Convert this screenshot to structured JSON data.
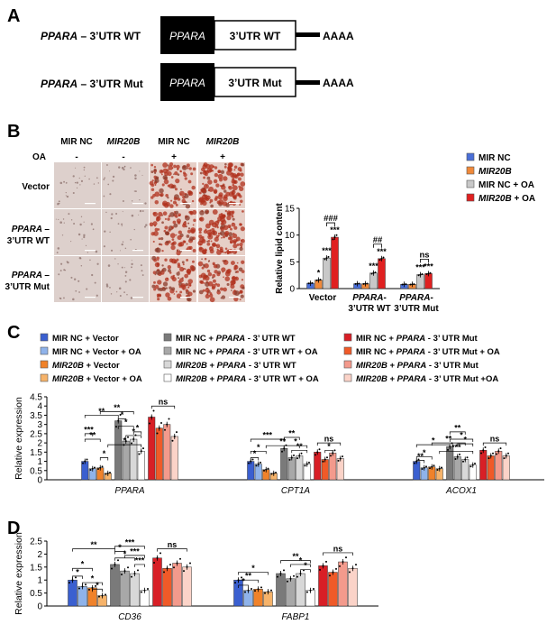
{
  "panels": {
    "A": {
      "letter": "A",
      "constructs": [
        {
          "gene": "PPARA",
          "suffix": " – 3’UTR WT",
          "box_gene": "PPARA",
          "box_utr": "3’UTR WT",
          "tail": "AAAA"
        },
        {
          "gene": "PPARA",
          "suffix": " – 3’UTR Mut",
          "box_gene": "PPARA",
          "box_utr": "3’UTR Mut",
          "tail": "AAAA"
        }
      ]
    },
    "B": {
      "letter": "B",
      "column_headers": [
        "MIR NC",
        "MIR20B",
        "MIR NC",
        "MIR20B"
      ],
      "oa_label": "OA",
      "oa_signs": [
        "-",
        "-",
        "+",
        "+"
      ],
      "row_labels": [
        [
          "Vector"
        ],
        [
          "PPARA –",
          "3’UTR WT"
        ],
        [
          "PPARA –",
          "3’UTR Mut"
        ]
      ]
    },
    "C": {
      "letter": "C"
    },
    "D": {
      "letter": "D"
    }
  },
  "legends": {
    "B": [
      {
        "label": "MIR NC",
        "color": "#4a6fd8"
      },
      {
        "label": "MIR20B",
        "color": "#f0893a"
      },
      {
        "label": "MIR NC + OA",
        "color": "#c8c8c8"
      },
      {
        "label": "MIR20B + OA",
        "color": "#e02020"
      }
    ],
    "C": [
      {
        "label": "MIR NC + Vector",
        "color": "#3a5fd0"
      },
      {
        "label": "MIR NC + Vector + OA",
        "color": "#8fb3ea"
      },
      {
        "label": "MIR20B + Vector",
        "color": "#f0822a"
      },
      {
        "label": "MIR20B + Vector + OA",
        "color": "#f6b36a"
      },
      {
        "label": "MIR NC + PPARA - 3’ UTR WT",
        "color": "#7a7a7a"
      },
      {
        "label": "MIR NC + PPARA - 3’ UTR WT + OA",
        "color": "#a8a8a8"
      },
      {
        "label": "MIR20B + PPARA - 3’ UTR WT",
        "color": "#d8d8d8"
      },
      {
        "label": "MIR20B + PPARA - 3’ UTR WT + OA",
        "color": "#ffffff"
      },
      {
        "label": "MIR NC + PPARA - 3’ UTR Mut",
        "color": "#d81f26"
      },
      {
        "label": "MIR NC + PPARA - 3’ UTR Mut + OA",
        "color": "#f05a28"
      },
      {
        "label": "MIR20B + PPARA - 3’ UTR Mut",
        "color": "#f39a8c"
      },
      {
        "label": "MIR20B + PPARA - 3’ UTR Mut +OA",
        "color": "#fbd3c8"
      }
    ]
  },
  "chart_data": [
    {
      "id": "B-bar",
      "type": "bar",
      "ylabel": "Relative lipid content",
      "ylim": [
        0,
        15
      ],
      "yticks": [
        0,
        5,
        10,
        15
      ],
      "categories": [
        [
          "Vector"
        ],
        [
          "PPARA-",
          "3’UTR WT"
        ],
        [
          "PPARA-",
          "3’UTR Mut"
        ]
      ],
      "series": [
        {
          "name": "MIR NC",
          "values": [
            1.0,
            0.9,
            0.8
          ]
        },
        {
          "name": "MIR20B",
          "values": [
            1.6,
            0.9,
            0.8
          ]
        },
        {
          "name": "MIR NC + OA",
          "values": [
            5.7,
            2.9,
            2.6
          ]
        },
        {
          "name": "MIR20B + OA",
          "values": [
            9.6,
            5.6,
            2.8
          ]
        }
      ],
      "star_labels": [
        "",
        "*",
        "***",
        "***",
        "",
        "",
        "***",
        "***",
        "",
        "",
        "***",
        "***"
      ],
      "bracket_labels": [
        "###",
        "##",
        "ns"
      ]
    },
    {
      "id": "C-expr",
      "type": "bar",
      "ylabel": "Relative expression",
      "ylim": [
        0,
        4.5
      ],
      "yticks": [
        0,
        0.5,
        1,
        1.5,
        2,
        2.5,
        3,
        3.5,
        4,
        4.5
      ],
      "categories": [
        "PPARA",
        "CPT1A",
        "ACOX1"
      ],
      "values": [
        [
          1.0,
          0.6,
          0.65,
          0.35,
          3.2,
          2.1,
          2.2,
          1.55,
          3.4,
          2.8,
          3.0,
          2.35
        ],
        [
          1.0,
          0.85,
          0.55,
          0.35,
          1.7,
          1.2,
          1.3,
          0.85,
          1.5,
          1.1,
          1.45,
          1.15
        ],
        [
          1.0,
          0.65,
          0.7,
          0.6,
          1.8,
          1.25,
          1.1,
          0.8,
          1.6,
          1.3,
          1.55,
          1.3
        ]
      ],
      "annotations": {
        "PPARA": [
          "**",
          "**",
          "***",
          "*",
          "**",
          "*",
          "*",
          "*",
          "*",
          "*",
          "ns"
        ],
        "CPT1A": [
          "***",
          "*",
          "*",
          "**",
          "**",
          "*",
          "**",
          "*",
          "ns"
        ],
        "ACOX1": [
          "*",
          "*",
          "**",
          "**",
          "*",
          "**",
          "*",
          "***",
          "ns"
        ]
      }
    },
    {
      "id": "D-expr",
      "type": "bar",
      "ylabel": "Relative expression",
      "ylim": [
        0,
        2.5
      ],
      "yticks": [
        0,
        0.5,
        1,
        1.5,
        2,
        2.5
      ],
      "categories": [
        "CD36",
        "FABP1"
      ],
      "values": [
        [
          1.0,
          0.75,
          0.7,
          0.4,
          1.6,
          1.35,
          1.25,
          0.6,
          1.85,
          1.45,
          1.65,
          1.5
        ],
        [
          1.0,
          0.6,
          0.65,
          0.55,
          1.25,
          1.05,
          1.25,
          0.6,
          1.55,
          1.3,
          1.7,
          1.45
        ]
      ],
      "annotations": {
        "CD36": [
          "**",
          "*",
          "*",
          "*",
          "*",
          "***",
          "*",
          "*",
          "***",
          "***",
          "ns"
        ],
        "FABP1": [
          "*",
          "**",
          "*",
          "**",
          "*",
          "*",
          "ns"
        ]
      }
    }
  ]
}
